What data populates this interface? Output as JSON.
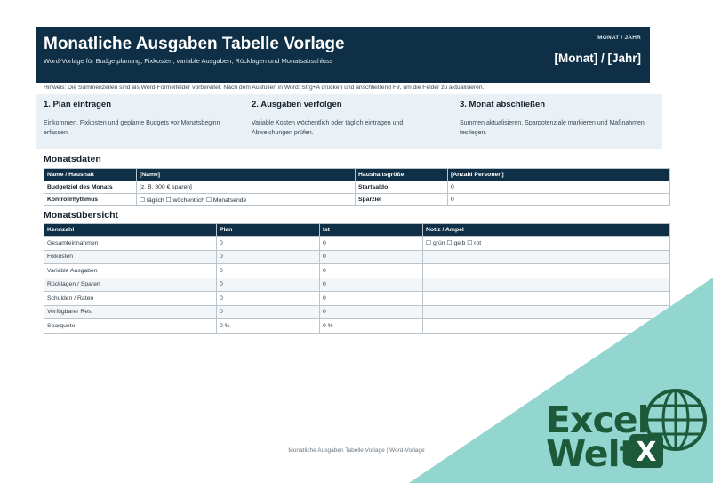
{
  "header": {
    "title": "Monatliche Ausgaben Tabelle Vorlage",
    "subtitle": "Word-Vorlage für Budgetplanung, Fixkosten, variable Ausgaben, Rücklagen und Monatsabschluss",
    "period_label": "MONAT / JAHR",
    "period_value": "[Monat] / [Jahr]"
  },
  "hint": "Hinweis: Die Summenzeilen sind als Word-Formelfelder vorbereitet. Nach dem Ausfüllen in Word: Strg+A drücken und anschließend F9, um die Felder zu aktualisieren.",
  "steps": [
    {
      "title": "1. Plan eintragen",
      "text": "Einkommen, Fixkosten und geplante Budgets vor Monatsbeginn erfassen."
    },
    {
      "title": "2. Ausgaben verfolgen",
      "text": "Variable Kosten wöchentlich oder täglich eintragen und Abweichungen prüfen."
    },
    {
      "title": "3. Monat abschließen",
      "text": "Summen aktualisieren, Sparpotenziale markieren und Maßnahmen festlegen."
    }
  ],
  "monatsdaten": {
    "title": "Monatsdaten",
    "rows": [
      {
        "l1": "Name / Haushalt",
        "v1": "[Name]",
        "l2": "Haushaltsgröße",
        "v2": "[Anzahl Personen]"
      },
      {
        "l1": "Budgetziel des Monats",
        "v1": "[z. B. 300 € sparen]",
        "l2": "Startsaldo",
        "v2": "0"
      },
      {
        "l1": "Kontrollrhythmus",
        "v1": "☐ täglich  ☐ wöchentlich  ☐ Monatsende",
        "l2": "Sparziel",
        "v2": "0"
      }
    ]
  },
  "uebersicht": {
    "title": "Monatsübersicht",
    "headers": [
      "Kennzahl",
      "Plan",
      "Ist",
      "Notiz / Ampel"
    ],
    "rows": [
      [
        "Gesamteinnahmen",
        "0",
        "0",
        "☐ grün  ☐ gelb  ☐ rot"
      ],
      [
        "Fixkosten",
        "0",
        "0",
        ""
      ],
      [
        "Variable Ausgaben",
        "0",
        "0",
        ""
      ],
      [
        "Rücklagen / Sparen",
        "0",
        "0",
        ""
      ],
      [
        "Schulden / Raten",
        "0",
        "0",
        ""
      ],
      [
        "Verfügbarer Rest",
        "0",
        "0",
        ""
      ],
      [
        "Sparquote",
        "0 %",
        "0 %",
        ""
      ]
    ]
  },
  "footer": "Monatliche Ausgaben Tabelle Vorlage | Word-Vorlage",
  "logo": {
    "line1": "Excel",
    "line2": "Welt",
    "badge": "X"
  },
  "colors": {
    "header_bg": "#0e2f45",
    "panel_bg": "#e9f1f7",
    "corner": "#93d6d0",
    "logo": "#1c5a3a"
  }
}
